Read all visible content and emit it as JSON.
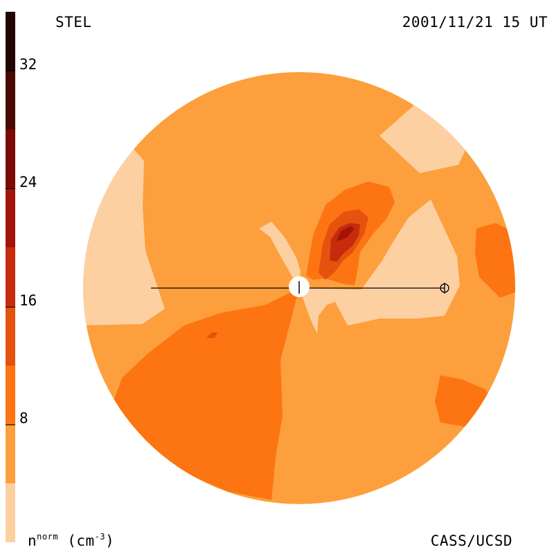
{
  "header": {
    "source": "STEL",
    "datetime": "2001/11/21 15 UT"
  },
  "footer": {
    "unit_base": "n",
    "unit_sup": "norm",
    "unit_tail": "(cm",
    "unit_exp": "-3",
    "unit_close": ")",
    "credit": "CASS/UCSD"
  },
  "colorbar": {
    "levels": [
      {
        "from": 0,
        "to": 4,
        "color": "#fdd0a2"
      },
      {
        "from": 4,
        "to": 8,
        "color": "#fd9f3c"
      },
      {
        "from": 8,
        "to": 12,
        "color": "#fd7412"
      },
      {
        "from": 12,
        "to": 16,
        "color": "#e5520e"
      },
      {
        "from": 16,
        "to": 20,
        "color": "#c52b0c"
      },
      {
        "from": 20,
        "to": 24,
        "color": "#a31408"
      },
      {
        "from": 24,
        "to": 28,
        "color": "#7a0b05"
      },
      {
        "from": 28,
        "to": 32,
        "color": "#4a0803"
      },
      {
        "from": 32,
        "to": 36,
        "color": "#220402"
      }
    ],
    "ticks": [
      "8",
      "16",
      "24",
      "32"
    ],
    "tick_values": [
      8,
      16,
      24,
      32
    ]
  },
  "markers": {
    "sun": "sun-symbol",
    "earth": "earth-symbol"
  }
}
